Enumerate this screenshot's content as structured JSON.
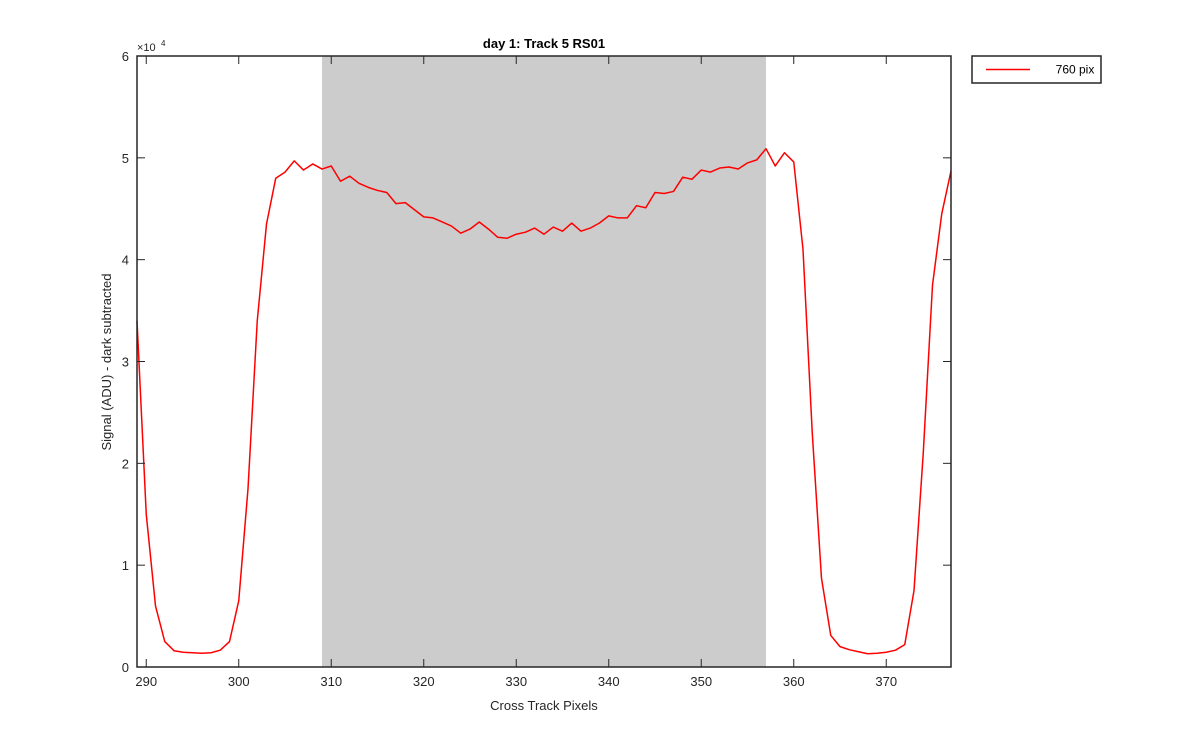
{
  "chart_data": {
    "type": "line",
    "title": "day 1: Track 5  RS01",
    "xlabel": "Cross Track Pixels",
    "ylabel": "Signal (ADU) - dark subtracted",
    "xlim": [
      289,
      377
    ],
    "ylim": [
      0,
      60000
    ],
    "y_exponent_label": "×10",
    "y_exponent_power": "4",
    "x_ticks": [
      290,
      300,
      310,
      320,
      330,
      340,
      350,
      360,
      370
    ],
    "x_tick_labels": [
      "290",
      "300",
      "310",
      "320",
      "330",
      "340",
      "350",
      "360",
      "370"
    ],
    "y_ticks": [
      0,
      10000,
      20000,
      30000,
      40000,
      50000,
      60000
    ],
    "y_tick_labels": [
      "0",
      "1",
      "2",
      "3",
      "4",
      "5",
      "6"
    ],
    "grid": false,
    "legend": "outside-top-right",
    "shaded_region": {
      "x_range": [
        309,
        357
      ],
      "color": "#cccccc"
    },
    "series": [
      {
        "name": "760 pix",
        "color": "#ff0000",
        "x": [
          289,
          290,
          291,
          292,
          293,
          294,
          295,
          296,
          297,
          298,
          299,
          300,
          301,
          302,
          303,
          304,
          305,
          306,
          307,
          308,
          309,
          310,
          311,
          312,
          313,
          314,
          315,
          316,
          317,
          318,
          319,
          320,
          321,
          322,
          323,
          324,
          325,
          326,
          327,
          328,
          329,
          330,
          331,
          332,
          333,
          334,
          335,
          336,
          337,
          338,
          339,
          340,
          341,
          342,
          343,
          344,
          345,
          346,
          347,
          348,
          349,
          350,
          351,
          352,
          353,
          354,
          355,
          356,
          357,
          358,
          359,
          360,
          361,
          362,
          363,
          364,
          365,
          366,
          367,
          368,
          369,
          370,
          371,
          372,
          373,
          374,
          375,
          376,
          377
        ],
        "values": [
          34000,
          15000,
          6000,
          2500,
          1600,
          1450,
          1400,
          1350,
          1400,
          1650,
          2500,
          6500,
          17500,
          34000,
          43500,
          48000,
          48600,
          49700,
          48800,
          49400,
          48900,
          49200,
          47700,
          48200,
          47500,
          47100,
          46800,
          46600,
          45500,
          45600,
          44900,
          44200,
          44100,
          43700,
          43300,
          42600,
          43000,
          43700,
          43000,
          42200,
          42100,
          42500,
          42700,
          43100,
          42500,
          43200,
          42800,
          43600,
          42800,
          43100,
          43600,
          44300,
          44100,
          44100,
          45300,
          45100,
          46600,
          46500,
          46700,
          48100,
          47900,
          48800,
          48600,
          49000,
          49100,
          48900,
          49500,
          49800,
          50900,
          49200,
          50500,
          49600,
          41000,
          23000,
          8700,
          3100,
          2000,
          1700,
          1500,
          1300,
          1350,
          1450,
          1650,
          2200,
          7500,
          21000,
          37500,
          44500,
          48700
        ]
      }
    ]
  }
}
